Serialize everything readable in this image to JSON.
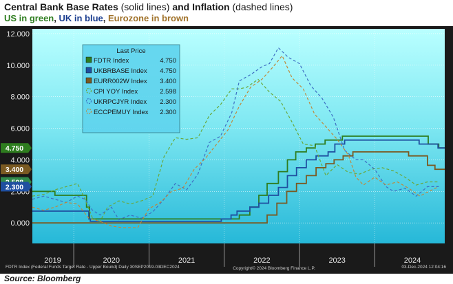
{
  "header": {
    "title_bold": "Central Bank Base Rates",
    "title_part1": " (solid lines) ",
    "title_bold2": "and Inflation",
    "title_part2": " (dashed lines)",
    "sub_us": "US in green",
    "sub_sep1": ", ",
    "sub_uk": "UK in blue",
    "sub_sep2": ", ",
    "sub_ez": "Eurozone in brown"
  },
  "footer": {
    "left": "FDTR Index (Federal Funds Target Rate - Upper Bound) Daily 30SEP2019-03DEC2024",
    "right": "03-Dec-2024 12:04:16",
    "copyright": "Copyright© 2024 Bloomberg Finance L.P.",
    "source": "Source: Bloomberg"
  },
  "colors": {
    "us": "#2e7d1f",
    "uk": "#1f4fa0",
    "ez": "#7a5a22",
    "us_cpi": "#6aa83a",
    "uk_cpi": "#3d6fc2",
    "ez_cpi": "#c0893a"
  },
  "chart_data": {
    "type": "line",
    "legend_title": "Last Price",
    "x_unit": "year",
    "xlim": [
      2019.45,
      2024.93
    ],
    "ylim": [
      -1.3,
      12.3
    ],
    "yticks": [
      "0.000",
      "2.000",
      "4.000",
      "6.000",
      "8.000",
      "10.000",
      "12.000"
    ],
    "ytick_values": [
      0,
      2,
      4,
      6,
      8,
      10,
      12
    ],
    "xtick_labels": [
      "2019",
      "2020",
      "2021",
      "2022",
      "2023",
      "2024"
    ],
    "xtick_values": [
      2019.72,
      2020.5,
      2021.5,
      2022.5,
      2023.5,
      2024.5
    ],
    "last_value_tags": [
      {
        "label": "4.750",
        "value": 4.75,
        "color": "#2e7d1f"
      },
      {
        "label": "3.400",
        "value": 3.4,
        "color": "#7a5a22"
      },
      {
        "label": "2.598",
        "value": 2.598,
        "color": "#2f8a4a"
      },
      {
        "label": "2.300",
        "value": 2.3,
        "color": "#1f4fa0"
      }
    ],
    "series": [
      {
        "name": "FDTR Index",
        "last": "4.750",
        "style": "solid",
        "color_key": "us",
        "points": [
          [
            2019.45,
            2.0
          ],
          [
            2019.75,
            2.0
          ],
          [
            2019.75,
            1.75
          ],
          [
            2019.83,
            1.75
          ],
          [
            2019.83,
            1.75
          ],
          [
            2020.17,
            1.75
          ],
          [
            2020.17,
            1.0
          ],
          [
            2020.21,
            1.0
          ],
          [
            2020.21,
            0.25
          ],
          [
            2022.2,
            0.25
          ],
          [
            2022.2,
            0.5
          ],
          [
            2022.34,
            0.5
          ],
          [
            2022.34,
            1.0
          ],
          [
            2022.46,
            1.0
          ],
          [
            2022.46,
            1.75
          ],
          [
            2022.57,
            1.75
          ],
          [
            2022.57,
            2.5
          ],
          [
            2022.72,
            2.5
          ],
          [
            2022.72,
            3.25
          ],
          [
            2022.84,
            3.25
          ],
          [
            2022.84,
            4.0
          ],
          [
            2022.95,
            4.0
          ],
          [
            2022.95,
            4.5
          ],
          [
            2023.09,
            4.5
          ],
          [
            2023.09,
            4.75
          ],
          [
            2023.21,
            4.75
          ],
          [
            2023.21,
            5.0
          ],
          [
            2023.34,
            5.0
          ],
          [
            2023.34,
            5.25
          ],
          [
            2023.57,
            5.25
          ],
          [
            2023.57,
            5.5
          ],
          [
            2024.71,
            5.5
          ],
          [
            2024.71,
            5.0
          ],
          [
            2024.85,
            5.0
          ],
          [
            2024.85,
            4.75
          ],
          [
            2024.93,
            4.75
          ]
        ]
      },
      {
        "name": "UKBRBASE Index",
        "last": "4.750",
        "style": "solid",
        "color_key": "uk",
        "points": [
          [
            2019.45,
            0.75
          ],
          [
            2020.2,
            0.75
          ],
          [
            2020.2,
            0.25
          ],
          [
            2020.22,
            0.25
          ],
          [
            2020.22,
            0.1
          ],
          [
            2021.96,
            0.1
          ],
          [
            2021.96,
            0.25
          ],
          [
            2022.09,
            0.25
          ],
          [
            2022.09,
            0.5
          ],
          [
            2022.17,
            0.5
          ],
          [
            2022.17,
            0.75
          ],
          [
            2022.34,
            0.75
          ],
          [
            2022.34,
            1.0
          ],
          [
            2022.46,
            1.0
          ],
          [
            2022.46,
            1.25
          ],
          [
            2022.59,
            1.25
          ],
          [
            2022.59,
            1.75
          ],
          [
            2022.72,
            1.75
          ],
          [
            2022.72,
            2.25
          ],
          [
            2022.84,
            2.25
          ],
          [
            2022.84,
            3.0
          ],
          [
            2022.96,
            3.0
          ],
          [
            2022.96,
            3.5
          ],
          [
            2023.09,
            3.5
          ],
          [
            2023.09,
            4.0
          ],
          [
            2023.22,
            4.0
          ],
          [
            2023.22,
            4.25
          ],
          [
            2023.38,
            4.25
          ],
          [
            2023.38,
            4.5
          ],
          [
            2023.47,
            4.5
          ],
          [
            2023.47,
            5.0
          ],
          [
            2023.6,
            5.0
          ],
          [
            2023.6,
            5.25
          ],
          [
            2024.59,
            5.25
          ],
          [
            2024.59,
            5.0
          ],
          [
            2024.84,
            5.0
          ],
          [
            2024.84,
            4.75
          ],
          [
            2024.93,
            4.75
          ]
        ]
      },
      {
        "name": "EURR002W Index",
        "last": "3.400",
        "style": "solid",
        "color_key": "ez",
        "points": [
          [
            2019.45,
            0.0
          ],
          [
            2022.57,
            0.0
          ],
          [
            2022.57,
            0.5
          ],
          [
            2022.7,
            0.5
          ],
          [
            2022.7,
            1.25
          ],
          [
            2022.83,
            1.25
          ],
          [
            2022.83,
            2.0
          ],
          [
            2022.96,
            2.0
          ],
          [
            2022.96,
            2.5
          ],
          [
            2023.09,
            2.5
          ],
          [
            2023.09,
            3.0
          ],
          [
            2023.22,
            3.0
          ],
          [
            2023.22,
            3.5
          ],
          [
            2023.35,
            3.5
          ],
          [
            2023.35,
            3.75
          ],
          [
            2023.46,
            3.75
          ],
          [
            2023.46,
            4.0
          ],
          [
            2023.58,
            4.0
          ],
          [
            2023.58,
            4.25
          ],
          [
            2023.71,
            4.25
          ],
          [
            2023.71,
            4.5
          ],
          [
            2024.45,
            4.5
          ],
          [
            2024.45,
            4.25
          ],
          [
            2024.7,
            4.25
          ],
          [
            2024.7,
            3.65
          ],
          [
            2024.8,
            3.65
          ],
          [
            2024.8,
            3.4
          ],
          [
            2024.93,
            3.4
          ]
        ]
      },
      {
        "name": "CPI YOY Index",
        "last": "2.598",
        "style": "dashed",
        "color_key": "us_cpi",
        "points": [
          [
            2019.45,
            1.7
          ],
          [
            2019.6,
            1.8
          ],
          [
            2019.75,
            2.1
          ],
          [
            2019.9,
            2.3
          ],
          [
            2020.05,
            2.5
          ],
          [
            2020.15,
            1.5
          ],
          [
            2020.25,
            0.3
          ],
          [
            2020.35,
            0.1
          ],
          [
            2020.45,
            1.0
          ],
          [
            2020.6,
            1.4
          ],
          [
            2020.75,
            1.2
          ],
          [
            2020.9,
            1.4
          ],
          [
            2021.05,
            1.7
          ],
          [
            2021.2,
            4.2
          ],
          [
            2021.35,
            5.4
          ],
          [
            2021.5,
            5.3
          ],
          [
            2021.65,
            5.4
          ],
          [
            2021.8,
            6.8
          ],
          [
            2021.95,
            7.5
          ],
          [
            2022.1,
            8.5
          ],
          [
            2022.2,
            8.5
          ],
          [
            2022.3,
            8.6
          ],
          [
            2022.45,
            9.1
          ],
          [
            2022.6,
            8.3
          ],
          [
            2022.75,
            7.7
          ],
          [
            2022.9,
            6.4
          ],
          [
            2023.05,
            5.0
          ],
          [
            2023.2,
            4.9
          ],
          [
            2023.35,
            3.0
          ],
          [
            2023.5,
            3.7
          ],
          [
            2023.65,
            3.2
          ],
          [
            2023.8,
            3.1
          ],
          [
            2023.95,
            3.4
          ],
          [
            2024.1,
            3.5
          ],
          [
            2024.25,
            3.3
          ],
          [
            2024.4,
            2.9
          ],
          [
            2024.55,
            2.4
          ],
          [
            2024.7,
            2.6
          ],
          [
            2024.85,
            2.6
          ]
        ]
      },
      {
        "name": "UKRPCJYR Index",
        "last": "2.300",
        "style": "dashed",
        "color_key": "uk_cpi",
        "points": [
          [
            2019.45,
            1.5
          ],
          [
            2019.6,
            1.7
          ],
          [
            2019.75,
            1.5
          ],
          [
            2019.9,
            1.3
          ],
          [
            2020.05,
            1.7
          ],
          [
            2020.15,
            1.5
          ],
          [
            2020.25,
            0.8
          ],
          [
            2020.35,
            0.5
          ],
          [
            2020.5,
            1.0
          ],
          [
            2020.6,
            0.2
          ],
          [
            2020.75,
            0.5
          ],
          [
            2020.9,
            0.3
          ],
          [
            2021.05,
            0.7
          ],
          [
            2021.2,
            1.5
          ],
          [
            2021.35,
            2.5
          ],
          [
            2021.5,
            2.1
          ],
          [
            2021.65,
            3.1
          ],
          [
            2021.8,
            5.1
          ],
          [
            2021.95,
            5.5
          ],
          [
            2022.1,
            7.0
          ],
          [
            2022.2,
            9.0
          ],
          [
            2022.35,
            9.4
          ],
          [
            2022.5,
            9.9
          ],
          [
            2022.6,
            10.1
          ],
          [
            2022.72,
            11.1
          ],
          [
            2022.85,
            10.5
          ],
          [
            2023.0,
            10.1
          ],
          [
            2023.15,
            8.7
          ],
          [
            2023.3,
            7.9
          ],
          [
            2023.45,
            6.7
          ],
          [
            2023.6,
            4.6
          ],
          [
            2023.75,
            4.0
          ],
          [
            2023.85,
            4.0
          ],
          [
            2024.0,
            3.4
          ],
          [
            2024.15,
            2.3
          ],
          [
            2024.25,
            2.0
          ],
          [
            2024.4,
            2.2
          ],
          [
            2024.55,
            1.7
          ],
          [
            2024.7,
            2.3
          ],
          [
            2024.85,
            2.3
          ]
        ]
      },
      {
        "name": "ECCPEMUY Index",
        "last": "2.300",
        "style": "dashed",
        "color_key": "ez_cpi",
        "points": [
          [
            2019.45,
            1.0
          ],
          [
            2019.6,
            0.8
          ],
          [
            2019.75,
            1.0
          ],
          [
            2019.9,
            1.3
          ],
          [
            2020.05,
            1.2
          ],
          [
            2020.2,
            0.3
          ],
          [
            2020.35,
            0.1
          ],
          [
            2020.5,
            -0.2
          ],
          [
            2020.65,
            -0.3
          ],
          [
            2020.85,
            -0.3
          ],
          [
            2021.0,
            0.9
          ],
          [
            2021.15,
            1.3
          ],
          [
            2021.3,
            2.0
          ],
          [
            2021.45,
            2.2
          ],
          [
            2021.6,
            3.4
          ],
          [
            2021.75,
            4.1
          ],
          [
            2021.9,
            5.0
          ],
          [
            2022.05,
            5.9
          ],
          [
            2022.2,
            7.4
          ],
          [
            2022.35,
            8.6
          ],
          [
            2022.5,
            9.1
          ],
          [
            2022.65,
            9.9
          ],
          [
            2022.77,
            10.6
          ],
          [
            2022.9,
            9.2
          ],
          [
            2023.05,
            8.5
          ],
          [
            2023.2,
            6.9
          ],
          [
            2023.35,
            6.1
          ],
          [
            2023.5,
            5.3
          ],
          [
            2023.65,
            4.3
          ],
          [
            2023.75,
            2.9
          ],
          [
            2023.85,
            2.4
          ],
          [
            2024.0,
            2.9
          ],
          [
            2024.15,
            2.4
          ],
          [
            2024.3,
            2.6
          ],
          [
            2024.45,
            2.2
          ],
          [
            2024.6,
            1.7
          ],
          [
            2024.72,
            2.0
          ],
          [
            2024.85,
            2.3
          ]
        ]
      }
    ]
  }
}
